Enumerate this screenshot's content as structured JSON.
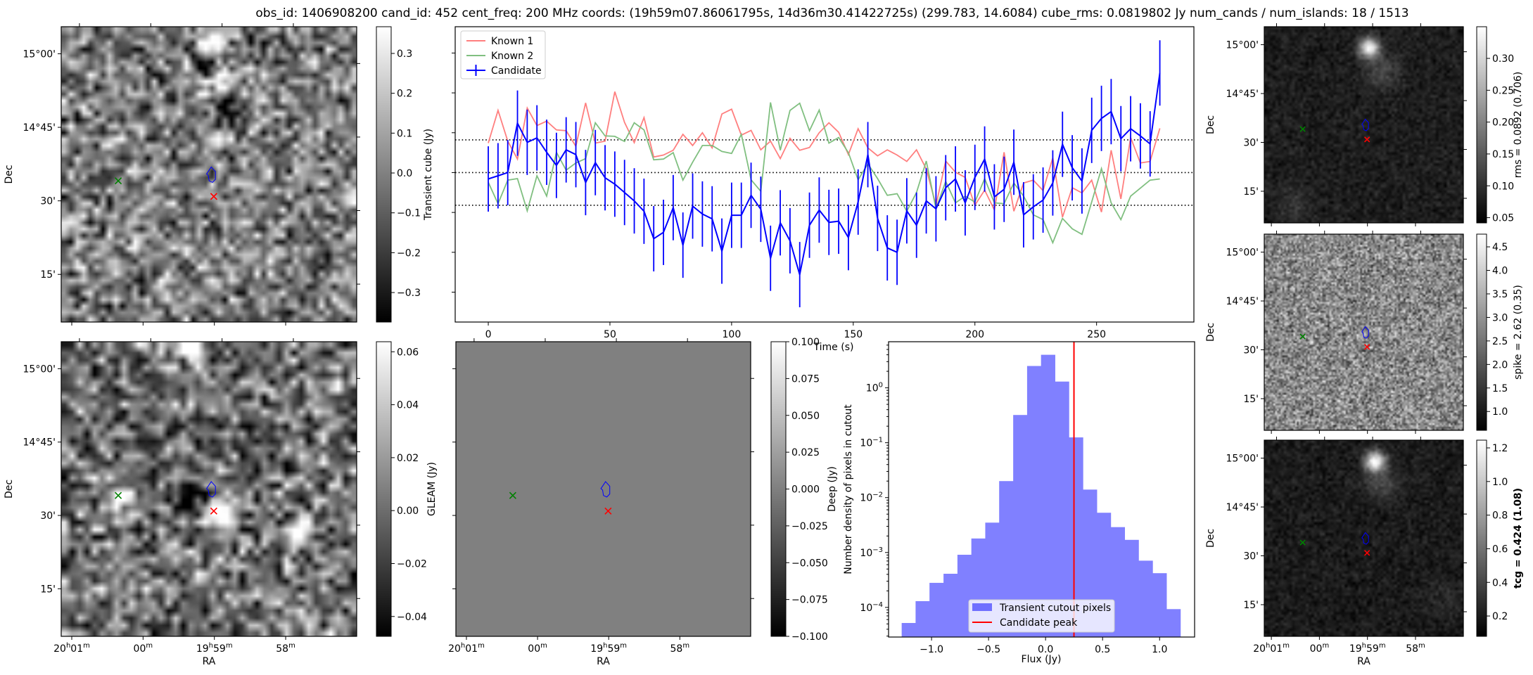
{
  "title": "obs_id: 1406908200 cand_id: 452 cent_freq: 200 MHz coords: (19h59m07.86061795s, 14d36m30.41422725s) (299.783, 14.6084) cube_rms: 0.0819802 Jy num_cands / num_islands: 18 / 1513",
  "axes_labels": {
    "dec": "Dec",
    "ra": "RA"
  },
  "colors": {
    "candidate": "#0000ff",
    "known1": "#ff7f7f",
    "known2": "#80bf80",
    "hist": "#8080ff",
    "peak": "#ff0000",
    "green_marker": "#008000",
    "red_marker": "#ff0000",
    "contour": "#0000ff"
  },
  "sky": {
    "ra_range": [
      300.287,
      299.251
    ],
    "dec_range": [
      14.088,
      15.092
    ],
    "dec_ticks": [
      15.0,
      14.75,
      14.5,
      14.25
    ],
    "dec_labels": [
      "15°00'",
      "14°45'",
      "30'",
      "15'"
    ],
    "ra_ticks": [
      300.25,
      300.0,
      299.75,
      299.5
    ],
    "ra_labels": [
      [
        "20",
        "h",
        "01",
        "m"
      ],
      [
        "00",
        "m"
      ],
      [
        "19",
        "h",
        "59",
        "m"
      ],
      [
        "58",
        "m"
      ]
    ],
    "markers": {
      "known_source": {
        "ra": 300.087,
        "dec": 14.568
      },
      "peak_source": {
        "ra": 299.752,
        "dec": 14.515
      },
      "candidate_contour": {
        "ra": 299.761,
        "dec": 14.589
      }
    }
  },
  "images": [
    {
      "id": "transient",
      "cbar_label": "Transient cube (Jy)",
      "cbar_range": [
        -0.374,
        0.367
      ],
      "cbar_ticks": [
        0.3,
        0.2,
        0.1,
        0.0,
        -0.1,
        -0.2,
        -0.3
      ],
      "cbar_tick_labels": [
        "0.3",
        "0.2",
        "0.1",
        "0.0",
        "−0.1",
        "−0.2",
        "−0.3"
      ],
      "bold": false
    },
    {
      "id": "gleam",
      "cbar_label": "GLEAM (Jy)",
      "cbar_range": [
        -0.0475,
        0.0638
      ],
      "cbar_ticks": [
        0.06,
        0.04,
        0.02,
        0.0,
        -0.02,
        -0.04
      ],
      "cbar_tick_labels": [
        "0.06",
        "0.04",
        "0.02",
        "0.00",
        "−0.02",
        "−0.04"
      ],
      "bold": false
    },
    {
      "id": "deep",
      "cbar_label": "Deep (Jy)",
      "cbar_range": [
        -0.1,
        0.1
      ],
      "cbar_ticks": [
        0.1,
        0.075,
        0.05,
        0.025,
        0.0,
        -0.025,
        -0.05,
        -0.075,
        -0.1
      ],
      "cbar_tick_labels": [
        "0.100",
        "0.075",
        "0.050",
        "0.025",
        "0.000",
        "−0.025",
        "−0.050",
        "−0.075",
        "−0.100"
      ],
      "bold": false
    },
    {
      "id": "rms",
      "cbar_label": "rms = 0.0892 (0.706)",
      "cbar_range": [
        0.0418,
        0.3497
      ],
      "cbar_ticks": [
        0.3,
        0.25,
        0.2,
        0.15,
        0.1,
        0.05
      ],
      "cbar_tick_labels": [
        "0.30",
        "0.25",
        "0.20",
        "0.15",
        "0.10",
        "0.05"
      ],
      "bold": false
    },
    {
      "id": "spike",
      "cbar_label": "spike = 2.62 (0.35)",
      "cbar_range": [
        0.6,
        4.77
      ],
      "cbar_ticks": [
        4.5,
        4.0,
        3.5,
        3.0,
        2.5,
        2.0,
        1.5,
        1.0
      ],
      "cbar_tick_labels": [
        "4.5",
        "4.0",
        "3.5",
        "3.0",
        "2.5",
        "2.0",
        "1.5",
        "1.0"
      ],
      "bold": false
    },
    {
      "id": "tcg",
      "cbar_label": "tcg = 0.424 (1.08)",
      "cbar_range": [
        0.079,
        1.246
      ],
      "cbar_ticks": [
        1.2,
        1.0,
        0.8,
        0.6,
        0.4,
        0.2
      ],
      "cbar_tick_labels": [
        "1.2",
        "1.0",
        "0.8",
        "0.6",
        "0.4",
        "0.2"
      ],
      "bold": true
    }
  ],
  "chart_data": [
    {
      "type": "line",
      "title": "",
      "xlabel": "Time (s)",
      "ylabel": "",
      "xlim": [
        -13.6,
        290
      ],
      "ylim": [
        -0.375,
        0.366
      ],
      "xticks": [
        0,
        50,
        100,
        150,
        200,
        250
      ],
      "yticks": [
        -0.3,
        -0.2,
        -0.1,
        0.0,
        0.1,
        0.2,
        0.3
      ],
      "hlines": [
        -0.082,
        0.0,
        0.082
      ],
      "legend": {
        "position": "upper-left",
        "entries": [
          "Known 1",
          "Known 2",
          "Candidate"
        ]
      },
      "x": [
        0,
        4,
        8,
        12,
        16,
        20,
        24,
        28,
        32,
        36,
        40,
        44,
        48,
        52,
        56,
        60,
        64,
        68,
        72,
        76,
        80,
        84,
        88,
        92,
        96,
        100,
        104,
        108,
        112,
        116,
        120,
        124,
        128,
        132,
        136,
        140,
        144,
        148,
        152,
        156,
        160,
        164,
        168,
        172,
        176,
        180,
        184,
        188,
        192,
        196,
        200,
        204,
        208,
        212,
        216,
        220,
        224,
        228,
        232,
        236,
        240,
        244,
        248,
        252,
        256,
        260,
        264,
        268,
        272,
        276
      ],
      "series": [
        {
          "name": "Known 1",
          "values": [
            0.074,
            0.156,
            0.079,
            0.034,
            0.162,
            0.118,
            0.129,
            0.107,
            0.105,
            0.066,
            0.175,
            0.074,
            0.079,
            0.203,
            0.126,
            0.075,
            0.138,
            0.039,
            0.044,
            0.056,
            0.096,
            0.068,
            0.1,
            0.062,
            0.147,
            0.159,
            0.094,
            0.106,
            0.057,
            0.079,
            0.035,
            0.086,
            0.056,
            0.063,
            0.1,
            0.125,
            0.101,
            0.045,
            0.11,
            0.062,
            0.042,
            0.057,
            0.044,
            0.028,
            0.057,
            0.009,
            -0.082,
            0.029,
            0.001,
            -0.012,
            -0.082,
            -0.044,
            -0.094,
            0.051,
            -0.097,
            -0.026,
            -0.019,
            -0.045,
            0.037,
            -0.112,
            -0.038,
            -0.051,
            -0.019,
            -0.099,
            0.056,
            -0.066,
            0.088,
            0.024,
            0.028,
            0.111
          ]
        },
        {
          "name": "Known 2",
          "values": [
            -0.024,
            -0.078,
            -0.019,
            -0.015,
            -0.096,
            -0.008,
            -0.059,
            0.051,
            0.006,
            0.024,
            0.035,
            0.125,
            0.092,
            0.091,
            0.078,
            0.125,
            0.107,
            0.032,
            0.034,
            0.05,
            -0.019,
            0.026,
            0.068,
            0.068,
            0.053,
            0.048,
            0.096,
            -0.018,
            -0.047,
            0.176,
            0.056,
            0.156,
            0.174,
            0.105,
            0.157,
            0.074,
            0.088,
            0.05,
            -0.018,
            0.022,
            -0.015,
            -0.057,
            -0.053,
            -0.097,
            -0.05,
            0.029,
            -0.091,
            -0.022,
            -0.076,
            -0.059,
            -0.074,
            -0.015,
            -0.076,
            -0.078,
            -0.026,
            -0.059,
            -0.106,
            -0.118,
            -0.176,
            -0.115,
            -0.141,
            -0.155,
            -0.074,
            0.01,
            -0.076,
            -0.118,
            -0.059,
            -0.039,
            -0.019,
            -0.016
          ]
        },
        {
          "name": "Candidate",
          "yerr": 0.082,
          "values": [
            -0.016,
            -0.008,
            0,
            0.124,
            0.076,
            0.087,
            0.051,
            0.018,
            0.057,
            0.045,
            -0.025,
            0.025,
            -0.013,
            -0.029,
            -0.05,
            -0.071,
            -0.097,
            -0.166,
            -0.15,
            -0.088,
            -0.182,
            -0.084,
            -0.104,
            -0.116,
            -0.197,
            -0.107,
            -0.107,
            -0.057,
            -0.092,
            -0.215,
            -0.126,
            -0.171,
            -0.256,
            -0.132,
            -0.094,
            -0.125,
            -0.122,
            -0.163,
            -0.074,
            0.045,
            -0.115,
            -0.189,
            -0.2,
            -0.096,
            -0.132,
            -0.071,
            -0.091,
            -0.038,
            -0.016,
            -0.076,
            -0.012,
            0.034,
            -0.061,
            -0.042,
            0.026,
            -0.106,
            -0.086,
            -0.069,
            -0.026,
            0.071,
            0.012,
            -0.021,
            0.106,
            0.136,
            0.153,
            0.085,
            0.11,
            0.092,
            0.072,
            0.25
          ]
        }
      ]
    },
    {
      "type": "bar",
      "title": "",
      "xlabel": "Flux (Jy)",
      "ylabel": "Number density of pixels in cutout",
      "yscale": "log",
      "xlim": [
        -1.377,
        1.307
      ],
      "ylim_log10": [
        -4.54,
        0.84
      ],
      "xticks": [
        -1.0,
        -0.5,
        0.0,
        0.5,
        1.0
      ],
      "xtick_labels": [
        "−1.0",
        "−0.5",
        "0.0",
        "0.5",
        "1.0"
      ],
      "yticks_log10": [
        0,
        -1,
        -2,
        -3,
        -4
      ],
      "ytick_labels": [
        [
          "10",
          "0"
        ],
        [
          "10",
          "−1"
        ],
        [
          "10",
          "−2"
        ],
        [
          "10",
          "−3"
        ],
        [
          "10",
          "−4"
        ]
      ],
      "bin_edges": [
        -1.262,
        -1.14,
        -1.018,
        -0.895,
        -0.773,
        -0.651,
        -0.529,
        -0.407,
        -0.284,
        -0.162,
        -0.04,
        0.082,
        0.204,
        0.327,
        0.449,
        0.571,
        0.693,
        0.815,
        0.938,
        1.06,
        1.182
      ],
      "values": [
        5.2e-05,
        0.00013,
        0.00028,
        0.00041,
        0.00091,
        0.0018,
        0.0035,
        0.02,
        0.32,
        2.5,
        4.0,
        1.3,
        0.125,
        0.014,
        0.0053,
        0.0029,
        0.0017,
        0.00071,
        0.00042,
        9.3e-05
      ],
      "vline": 0.249,
      "legend": {
        "position": "lower-center",
        "entries": [
          "Transient cutout pixels",
          "Candidate peak"
        ]
      }
    }
  ]
}
